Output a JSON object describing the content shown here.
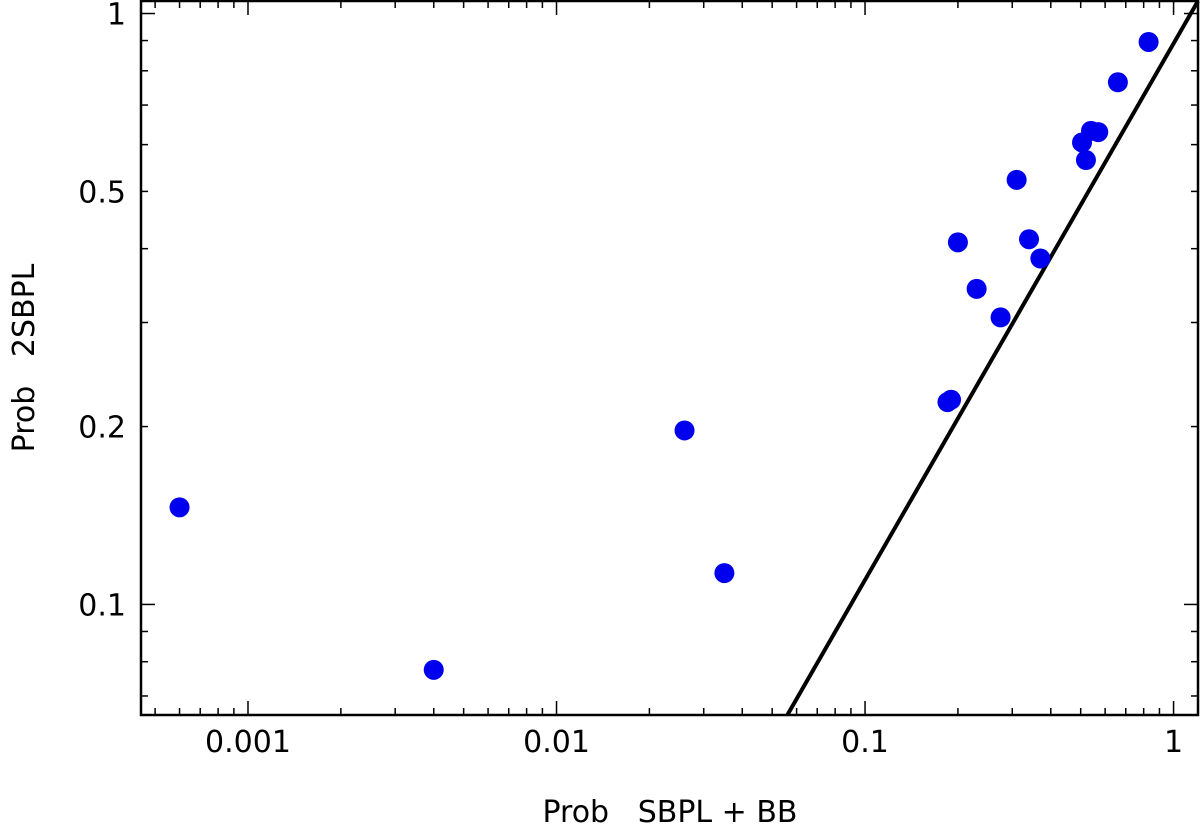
{
  "chart_data": {
    "type": "scatter",
    "xlabel": "Prob   SBPL + BB",
    "ylabel": "Prob   2SBPL",
    "xscale": "log",
    "yscale": "log",
    "xlim": [
      0.00045,
      1.2
    ],
    "ylim": [
      0.065,
      1.05
    ],
    "xticks": [
      {
        "value": 0.001,
        "label": "0.001"
      },
      {
        "value": 0.01,
        "label": "0.01"
      },
      {
        "value": 0.1,
        "label": "0.1"
      },
      {
        "value": 1,
        "label": "1"
      }
    ],
    "yticks": [
      {
        "value": 0.1,
        "label": "0.1"
      },
      {
        "value": 0.2,
        "label": "0.2"
      },
      {
        "value": 0.5,
        "label": "0.5"
      },
      {
        "value": 1,
        "label": "1"
      }
    ],
    "grid": false,
    "reference_line": {
      "x": [
        0.056,
        1.2
      ],
      "y": [
        0.065,
        1.05
      ]
    },
    "points": [
      {
        "x": 0.0006,
        "y": 0.146
      },
      {
        "x": 0.004,
        "y": 0.0775
      },
      {
        "x": 0.026,
        "y": 0.197
      },
      {
        "x": 0.035,
        "y": 0.113
      },
      {
        "x": 0.185,
        "y": 0.22
      },
      {
        "x": 0.19,
        "y": 0.222
      },
      {
        "x": 0.2,
        "y": 0.41
      },
      {
        "x": 0.23,
        "y": 0.342
      },
      {
        "x": 0.275,
        "y": 0.306
      },
      {
        "x": 0.31,
        "y": 0.523
      },
      {
        "x": 0.34,
        "y": 0.415
      },
      {
        "x": 0.37,
        "y": 0.385
      },
      {
        "x": 0.505,
        "y": 0.605
      },
      {
        "x": 0.52,
        "y": 0.565
      },
      {
        "x": 0.54,
        "y": 0.633
      },
      {
        "x": 0.57,
        "y": 0.63
      },
      {
        "x": 0.66,
        "y": 0.765
      },
      {
        "x": 0.83,
        "y": 0.895
      }
    ],
    "marker_color": "#0000ee",
    "line_color": "#000000"
  }
}
